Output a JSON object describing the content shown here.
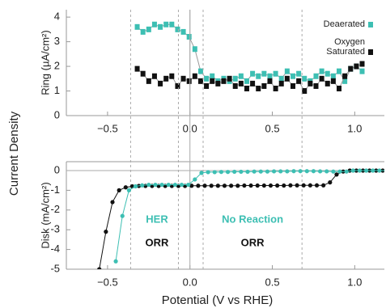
{
  "figure": {
    "ylabel": "Current Density"
  },
  "chart_data": [
    {
      "type": "line",
      "ylabel": "Ring (µA/cm²)",
      "legend": "upper right",
      "marker": "square",
      "xlim": [
        -0.75,
        1.18
      ],
      "ylim": [
        0,
        4.3
      ],
      "xticks": [
        {
          "value": -0.5,
          "label": "−0.5"
        },
        {
          "value": 0,
          "label": "0.0"
        },
        0.5,
        {
          "value": 1,
          "label": "1.0"
        }
      ],
      "yticks": [
        0,
        1,
        2,
        3,
        4
      ],
      "series": [
        {
          "name": "Deaerated",
          "color": "#3dbfb3",
          "x": [
            -0.32,
            -0.285,
            -0.25,
            -0.215,
            -0.18,
            -0.145,
            -0.11,
            -0.075,
            -0.04,
            -0.005,
            0.03,
            0.065,
            0.1,
            0.135,
            0.17,
            0.205,
            0.24,
            0.275,
            0.31,
            0.345,
            0.38,
            0.415,
            0.45,
            0.485,
            0.52,
            0.555,
            0.59,
            0.625,
            0.66,
            0.695,
            0.73,
            0.765,
            0.8,
            0.835,
            0.87,
            0.905,
            0.94,
            0.975,
            1.01,
            1.045
          ],
          "values": [
            3.6,
            3.4,
            3.5,
            3.7,
            3.6,
            3.7,
            3.7,
            3.5,
            3.4,
            3.2,
            2.7,
            1.8,
            1.5,
            1.6,
            1.4,
            1.5,
            1.4,
            1.5,
            1.6,
            1.4,
            1.7,
            1.6,
            1.7,
            1.6,
            1.7,
            1.5,
            1.8,
            1.6,
            1.7,
            1.5,
            1.4,
            1.6,
            1.8,
            1.7,
            1.6,
            1.8,
            1.4,
            1.9,
            2.0,
            1.8
          ]
        },
        {
          "name": "Oxygen Saturated",
          "color": "#111111",
          "x": [
            -0.32,
            -0.285,
            -0.25,
            -0.215,
            -0.18,
            -0.145,
            -0.11,
            -0.075,
            -0.04,
            -0.005,
            0.03,
            0.065,
            0.1,
            0.135,
            0.17,
            0.205,
            0.24,
            0.275,
            0.31,
            0.345,
            0.38,
            0.415,
            0.45,
            0.485,
            0.52,
            0.555,
            0.59,
            0.625,
            0.66,
            0.695,
            0.73,
            0.765,
            0.8,
            0.835,
            0.87,
            0.905,
            0.94,
            0.975,
            1.01,
            1.045
          ],
          "values": [
            1.9,
            1.7,
            1.4,
            1.6,
            1.3,
            1.5,
            1.6,
            1.2,
            1.5,
            1.4,
            1.6,
            1.4,
            1.2,
            1.4,
            1.3,
            1.4,
            1.5,
            1.2,
            1.3,
            1.1,
            1.3,
            1.1,
            1.2,
            1.4,
            1.1,
            1.3,
            1.5,
            1.2,
            1.4,
            1.0,
            1.3,
            1.2,
            1.5,
            1.3,
            1.4,
            1.1,
            1.6,
            1.9,
            2.0,
            2.1
          ]
        }
      ]
    },
    {
      "type": "line",
      "ylabel": "Disk (mA/cm²)",
      "xlabel": "Potential (V vs RHE)",
      "marker": "circle",
      "xlim": [
        -0.75,
        1.18
      ],
      "ylim": [
        -5,
        0.45
      ],
      "xticks": [
        {
          "value": -0.5,
          "label": "−0.5"
        },
        {
          "value": 0,
          "label": "0.0"
        },
        0.5,
        {
          "value": 1,
          "label": "1.0"
        }
      ],
      "yticks": [
        0,
        -1,
        -2,
        -3,
        -4,
        -5
      ],
      "vlines": [
        -0.36,
        -0.07,
        0.08,
        0.68
      ],
      "annotations": [
        {
          "text": "HER",
          "x": -0.2,
          "y": -2.5,
          "color": "#3dbfb3"
        },
        {
          "text": "ORR",
          "x": -0.2,
          "y": -3.7,
          "color": "#111111"
        },
        {
          "text": "No Reaction",
          "x": 0.38,
          "y": -2.5,
          "color": "#3dbfb3"
        },
        {
          "text": "ORR",
          "x": 0.38,
          "y": -3.7,
          "color": "#111111"
        }
      ],
      "series": [
        {
          "name": "Oxygen Saturated",
          "color": "#111111",
          "x": [
            -0.55,
            -0.51,
            -0.47,
            -0.43,
            -0.39,
            -0.35,
            -0.31,
            -0.27,
            -0.23,
            -0.19,
            -0.15,
            -0.11,
            -0.07,
            -0.03,
            0.01,
            0.05,
            0.09,
            0.13,
            0.17,
            0.21,
            0.25,
            0.29,
            0.33,
            0.37,
            0.41,
            0.45,
            0.49,
            0.53,
            0.57,
            0.61,
            0.65,
            0.69,
            0.73,
            0.77,
            0.81,
            0.85,
            0.89,
            0.93,
            0.97,
            1.01,
            1.05,
            1.09,
            1.13,
            1.17
          ],
          "values": [
            -5,
            -3.1,
            -1.6,
            -1.0,
            -0.85,
            -0.8,
            -0.78,
            -0.78,
            -0.78,
            -0.78,
            -0.78,
            -0.78,
            -0.78,
            -0.78,
            -0.77,
            -0.77,
            -0.77,
            -0.77,
            -0.77,
            -0.77,
            -0.77,
            -0.77,
            -0.76,
            -0.76,
            -0.76,
            -0.76,
            -0.76,
            -0.76,
            -0.76,
            -0.75,
            -0.75,
            -0.75,
            -0.75,
            -0.75,
            -0.75,
            -0.6,
            -0.2,
            -0.05,
            0,
            0,
            0,
            0,
            0,
            0
          ]
        },
        {
          "name": "Deaerated",
          "color": "#3dbfb3",
          "x": [
            -0.45,
            -0.41,
            -0.37,
            -0.33,
            -0.29,
            -0.25,
            -0.21,
            -0.17,
            -0.13,
            -0.09,
            -0.05,
            -0.01,
            0.03,
            0.07,
            0.11,
            0.15,
            0.19,
            0.23,
            0.27,
            0.31,
            0.35,
            0.39,
            0.43,
            0.47,
            0.51,
            0.55,
            0.59,
            0.63,
            0.67,
            0.71,
            0.75,
            0.79,
            0.83,
            0.87,
            0.91,
            0.95,
            0.99,
            1.03,
            1.07,
            1.11,
            1.15,
            1.19
          ],
          "values": [
            -4.6,
            -2.3,
            -1.0,
            -0.8,
            -0.75,
            -0.72,
            -0.72,
            -0.72,
            -0.72,
            -0.72,
            -0.72,
            -0.72,
            -0.45,
            -0.12,
            -0.08,
            -0.08,
            -0.07,
            -0.07,
            -0.06,
            -0.06,
            -0.06,
            -0.05,
            -0.05,
            -0.05,
            -0.04,
            -0.04,
            -0.04,
            -0.03,
            -0.03,
            -0.03,
            -0.03,
            -0.04,
            -0.04,
            -0.05,
            -0.05,
            -0.05,
            0,
            0,
            0,
            0,
            0,
            0
          ]
        }
      ]
    }
  ]
}
